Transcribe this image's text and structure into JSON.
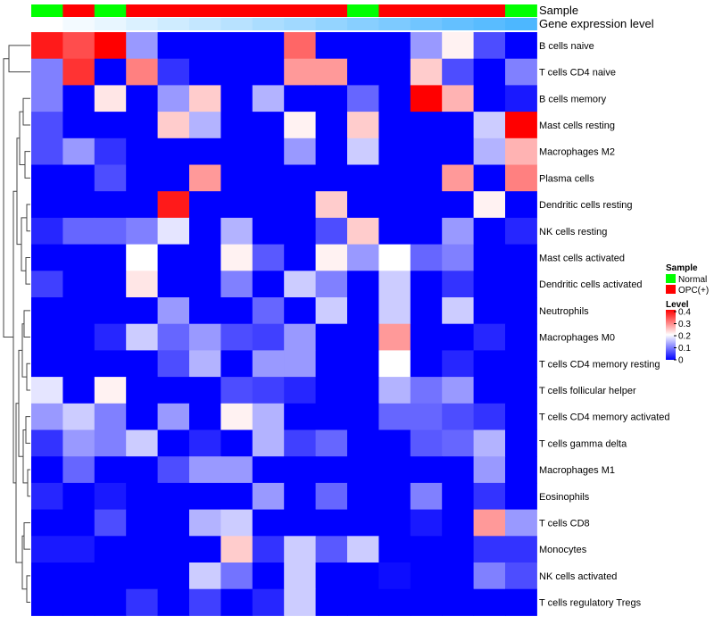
{
  "chart_data": {
    "type": "heatmap",
    "annotation_titles": [
      "Sample",
      "Gene expression level"
    ],
    "sample_groups": [
      "Normal",
      "OPC(+)",
      "Normal",
      "OPC(+)",
      "OPC(+)",
      "OPC(+)",
      "OPC(+)",
      "OPC(+)",
      "OPC(+)",
      "OPC(+)",
      "Normal",
      "OPC(+)",
      "OPC(+)",
      "OPC(+)",
      "OPC(+)",
      "Normal"
    ],
    "gene_expression_level": [
      0.0,
      0.07,
      0.13,
      0.2,
      0.27,
      0.33,
      0.4,
      0.47,
      0.53,
      0.6,
      0.67,
      0.73,
      0.8,
      0.87,
      0.93,
      1.0
    ],
    "rows": [
      "B cells naive",
      "T cells CD4 naive",
      "B cells memory",
      "Mast cells resting",
      "Macrophages M2",
      "Plasma cells",
      "Dendritic cells resting",
      "NK cells resting",
      "Mast cells activated",
      "Dendritic cells activated",
      "Neutrophils",
      "Macrophages M0",
      "T cells CD4 memory resting",
      "T cells follicular helper",
      "T cells CD4 memory activated",
      "T cells gamma delta",
      "Macrophages M1",
      "Eosinophils",
      "T cells CD8",
      "Monocytes",
      "NK cells activated",
      "T cells regulatory  Tregs"
    ],
    "values": [
      [
        0.38,
        0.34,
        0.4,
        0.12,
        0,
        0,
        0,
        0,
        0.32,
        0,
        0,
        0,
        0.12,
        0.21,
        0.06,
        0
      ],
      [
        0.1,
        0.36,
        0,
        0.3,
        0.04,
        0,
        0,
        0,
        0.28,
        0.28,
        0,
        0,
        0.24,
        0.06,
        0,
        0.1
      ],
      [
        0.1,
        0,
        0.22,
        0,
        0.12,
        0.24,
        0,
        0.14,
        0,
        0,
        0.08,
        0,
        0.4,
        0.26,
        0,
        0.02
      ],
      [
        0.06,
        0,
        0,
        0,
        0.24,
        0.14,
        0,
        0,
        0.21,
        0,
        0.24,
        0,
        0,
        0,
        0.16,
        0.4
      ],
      [
        0.06,
        0.12,
        0.04,
        0,
        0,
        0,
        0,
        0,
        0.12,
        0,
        0.16,
        0,
        0,
        0,
        0.14,
        0.26
      ],
      [
        0,
        0,
        0.06,
        0,
        0,
        0.28,
        0,
        0,
        0,
        0,
        0,
        0,
        0,
        0.28,
        0,
        0.3
      ],
      [
        0,
        0,
        0,
        0,
        0.38,
        0,
        0,
        0,
        0,
        0.24,
        0,
        0,
        0,
        0,
        0.21,
        0
      ],
      [
        0.03,
        0.08,
        0.08,
        0.1,
        0.18,
        0,
        0.14,
        0,
        0,
        0.06,
        0.24,
        0,
        0,
        0.12,
        0,
        0.03
      ],
      [
        0,
        0,
        0,
        0.2,
        0,
        0,
        0.21,
        0.07,
        0,
        0.21,
        0.12,
        0.2,
        0.08,
        0.1,
        0,
        0
      ],
      [
        0.05,
        0,
        0,
        0.22,
        0,
        0,
        0.1,
        0,
        0.16,
        0.1,
        0,
        0.16,
        0,
        0.04,
        0,
        0
      ],
      [
        0,
        0,
        0,
        0,
        0.12,
        0,
        0,
        0.08,
        0,
        0.16,
        0,
        0.16,
        0,
        0.16,
        0,
        0
      ],
      [
        0,
        0,
        0.03,
        0.16,
        0.08,
        0.12,
        0.06,
        0.05,
        0.12,
        0,
        0,
        0.28,
        0,
        0,
        0.03,
        0
      ],
      [
        0,
        0,
        0,
        0,
        0.06,
        0.14,
        0,
        0.12,
        0.12,
        0,
        0,
        0.2,
        0,
        0.03,
        0,
        0
      ],
      [
        0.18,
        0,
        0.21,
        0,
        0,
        0,
        0.06,
        0.05,
        0.03,
        0,
        0,
        0.14,
        0.09,
        0.12,
        0,
        0
      ],
      [
        0.12,
        0.16,
        0.1,
        0,
        0.12,
        0,
        0.21,
        0.14,
        0,
        0,
        0,
        0.08,
        0.08,
        0.06,
        0.04,
        0
      ],
      [
        0.04,
        0.12,
        0.1,
        0.16,
        0,
        0.03,
        0,
        0.14,
        0.05,
        0.08,
        0,
        0,
        0.07,
        0.08,
        0.14,
        0
      ],
      [
        0,
        0.08,
        0,
        0,
        0.06,
        0.12,
        0.12,
        0,
        0,
        0,
        0,
        0,
        0,
        0,
        0.12,
        0
      ],
      [
        0.03,
        0,
        0.02,
        0,
        0,
        0,
        0,
        0.12,
        0,
        0.08,
        0,
        0,
        0.1,
        0,
        0.04,
        0
      ],
      [
        0,
        0,
        0.06,
        0,
        0,
        0.14,
        0.16,
        0,
        0,
        0,
        0,
        0,
        0.02,
        0,
        0.28,
        0.12
      ],
      [
        0.02,
        0.02,
        0,
        0,
        0,
        0,
        0.24,
        0.04,
        0.16,
        0.07,
        0.16,
        0,
        0,
        0,
        0.04,
        0.04
      ],
      [
        0,
        0,
        0,
        0,
        0,
        0.16,
        0.09,
        0,
        0.16,
        0,
        0,
        0.01,
        0,
        0,
        0.1,
        0.06
      ],
      [
        0,
        0,
        0,
        0.04,
        0,
        0.05,
        0,
        0.03,
        0.16,
        0,
        0,
        0,
        0,
        0,
        0,
        0
      ]
    ],
    "legend": {
      "sample_title": "Sample",
      "sample_entries": [
        {
          "label": "Normal",
          "color": "#00ff00"
        },
        {
          "label": "OPC(+)",
          "color": "#ff0000"
        }
      ],
      "level_title": "Level",
      "level_ticks": [
        "0.4",
        "0.3",
        "0.2",
        "0.1",
        "0"
      ],
      "level_tick_values": [
        0.4,
        0.3,
        0.2,
        0.1,
        0
      ],
      "scale": {
        "min": 0,
        "max": 0.4,
        "low_color": "#0000ff",
        "mid_color": "#ffffff",
        "high_color": "#ff0000"
      }
    }
  }
}
